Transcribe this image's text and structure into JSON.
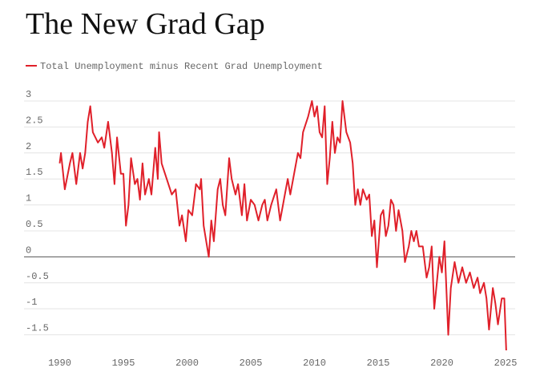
{
  "chart_data": {
    "type": "line",
    "title": "The New Grad Gap",
    "series": [
      {
        "name": "Total Unemployment minus Recent Grad Unemployment",
        "color": "#e0202a",
        "x": [
          1990,
          1990.1,
          1990.4,
          1990.8,
          1991.0,
          1991.3,
          1991.6,
          1991.8,
          1992.0,
          1992.2,
          1992.4,
          1992.6,
          1993.0,
          1993.3,
          1993.5,
          1993.8,
          1994.1,
          1994.3,
          1994.5,
          1994.8,
          1995.0,
          1995.2,
          1995.4,
          1995.6,
          1995.9,
          1996.1,
          1996.3,
          1996.5,
          1996.7,
          1997.0,
          1997.2,
          1997.5,
          1997.7,
          1997.8,
          1998.0,
          1998.4,
          1998.8,
          1999.1,
          1999.4,
          1999.6,
          1999.9,
          2000.1,
          2000.4,
          2000.7,
          2001.0,
          2001.1,
          2001.3,
          2001.5,
          2001.7,
          2001.9,
          2002.1,
          2002.4,
          2002.6,
          2002.8,
          2003.0,
          2003.3,
          2003.5,
          2003.8,
          2004.0,
          2004.3,
          2004.5,
          2004.7,
          2005.0,
          2005.3,
          2005.6,
          2005.9,
          2006.1,
          2006.3,
          2006.6,
          2007.0,
          2007.3,
          2007.6,
          2007.9,
          2008.1,
          2008.4,
          2008.7,
          2008.9,
          2009.1,
          2009.5,
          2009.8,
          2010.0,
          2010.2,
          2010.4,
          2010.6,
          2010.8,
          2011.0,
          2011.2,
          2011.4,
          2011.6,
          2011.8,
          2012.0,
          2012.2,
          2012.5,
          2012.8,
          2013.0,
          2013.2,
          2013.4,
          2013.6,
          2013.8,
          2014.1,
          2014.3,
          2014.5,
          2014.7,
          2014.9,
          2015.2,
          2015.4,
          2015.6,
          2015.8,
          2016.0,
          2016.2,
          2016.4,
          2016.6,
          2016.9,
          2017.1,
          2017.4,
          2017.6,
          2017.8,
          2018.0,
          2018.2,
          2018.5,
          2018.8,
          2019.0,
          2019.2,
          2019.4,
          2019.6,
          2019.8,
          2020.0,
          2020.2,
          2020.5,
          2020.7,
          2021.0,
          2021.3,
          2021.6,
          2021.9,
          2022.2,
          2022.5,
          2022.8,
          2023.0,
          2023.3,
          2023.5,
          2023.7,
          2024.0,
          2024.2,
          2024.4,
          2024.7,
          2024.9,
          2025.05
        ],
        "values": [
          1.8,
          2.0,
          1.3,
          1.8,
          2.0,
          1.4,
          2.0,
          1.7,
          2.0,
          2.6,
          2.9,
          2.4,
          2.2,
          2.3,
          2.1,
          2.6,
          2.0,
          1.4,
          2.3,
          1.6,
          1.6,
          0.6,
          1.0,
          1.9,
          1.4,
          1.5,
          1.1,
          1.8,
          1.2,
          1.5,
          1.2,
          2.1,
          1.5,
          2.4,
          1.8,
          1.5,
          1.2,
          1.3,
          0.6,
          0.8,
          0.3,
          0.9,
          0.8,
          1.4,
          1.3,
          1.5,
          0.6,
          0.3,
          0.0,
          0.7,
          0.3,
          1.3,
          1.5,
          1.0,
          0.8,
          1.9,
          1.5,
          1.2,
          1.4,
          0.8,
          1.4,
          0.7,
          1.1,
          1.0,
          0.7,
          1.0,
          1.1,
          0.7,
          1.0,
          1.3,
          0.7,
          1.1,
          1.5,
          1.2,
          1.6,
          2.0,
          1.9,
          2.4,
          2.7,
          3.0,
          2.7,
          2.9,
          2.4,
          2.3,
          2.9,
          1.4,
          1.9,
          2.6,
          2.0,
          2.3,
          2.2,
          3.0,
          2.4,
          2.2,
          1.8,
          1.0,
          1.3,
          1.0,
          1.3,
          1.1,
          1.2,
          0.4,
          0.7,
          -0.2,
          0.8,
          0.9,
          0.4,
          0.6,
          1.1,
          1.0,
          0.5,
          0.9,
          0.5,
          -0.1,
          0.2,
          0.5,
          0.3,
          0.5,
          0.2,
          0.2,
          -0.4,
          -0.2,
          0.2,
          -1.0,
          -0.5,
          0.0,
          -0.3,
          0.3,
          -1.5,
          -0.6,
          -0.1,
          -0.5,
          -0.2,
          -0.5,
          -0.3,
          -0.6,
          -0.4,
          -0.7,
          -0.5,
          -0.8,
          -1.4,
          -0.6,
          -0.9,
          -1.3,
          -0.8,
          -0.8,
          -1.8
        ]
      }
    ],
    "xlim": [
      1987.2,
      2025.75
    ],
    "xticks": [
      1990,
      1995,
      2000,
      2005,
      2010,
      2015,
      2020,
      2025
    ],
    "ylim": [
      -1.9,
      3.0
    ],
    "yticks": [
      3,
      2.5,
      2,
      1.5,
      1,
      0.5,
      0,
      -0.5,
      -1,
      -1.5
    ],
    "grid": true
  }
}
